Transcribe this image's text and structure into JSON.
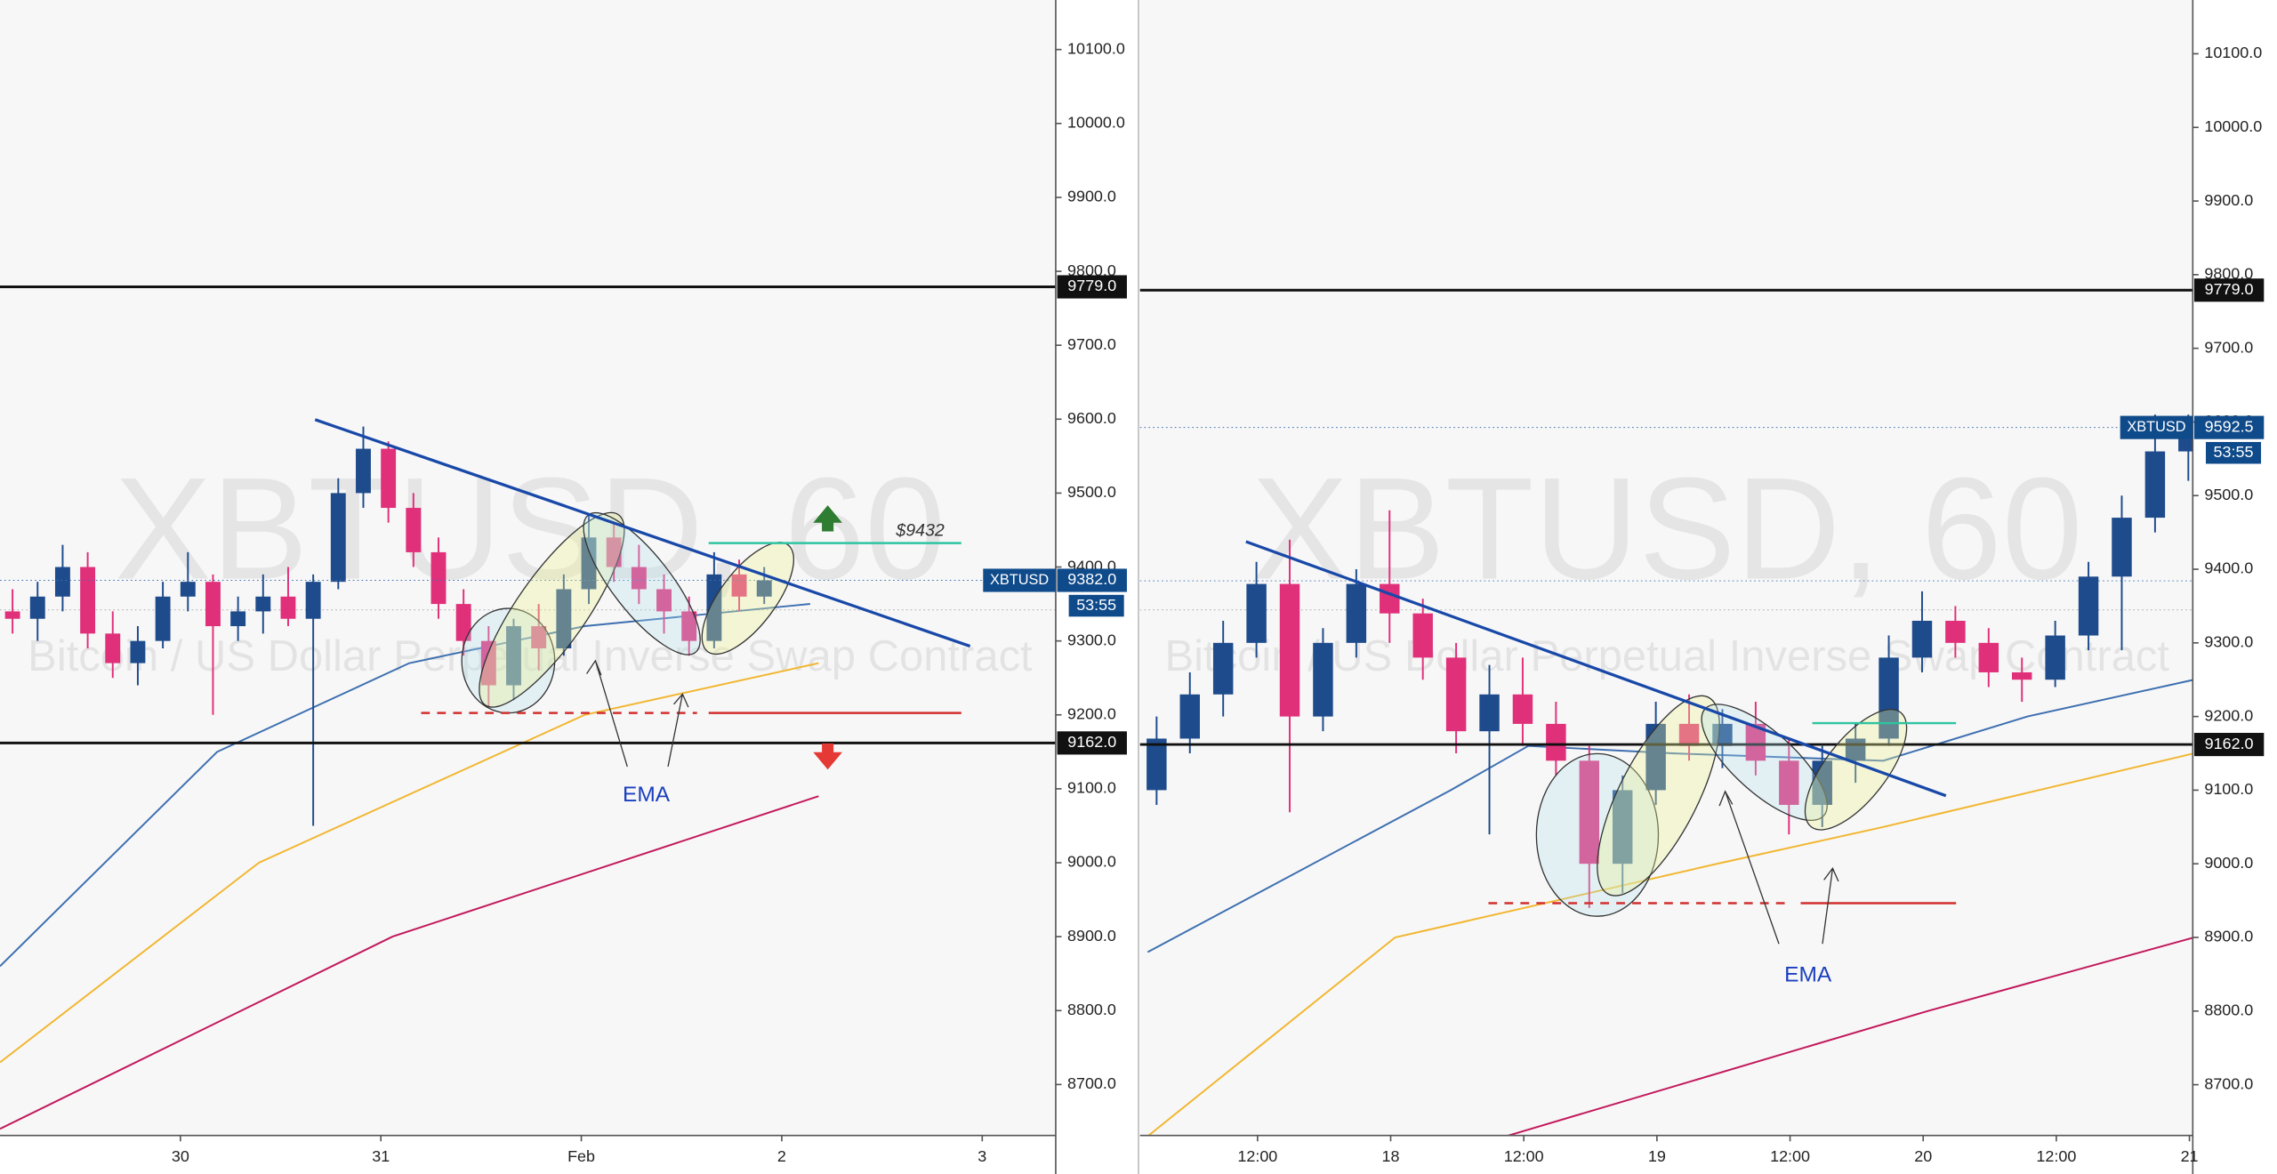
{
  "chart_data": [
    {
      "type": "candlestick",
      "watermark": "XBTUSD, 60",
      "subtitle": "Bitcoin / US Dollar Perpetual Inverse Swap Contract",
      "xlim": [
        0,
        126.4
      ],
      "ylim": [
        8631,
        10167
      ],
      "xticks": [
        {
          "value": 21.6,
          "label": "30"
        },
        {
          "value": 45.6,
          "label": "31"
        },
        {
          "value": 69.6,
          "label": "Feb"
        },
        {
          "value": 93.6,
          "label": "2"
        },
        {
          "value": 117.6,
          "label": "3"
        }
      ],
      "yticks": [
        {
          "value": 8700,
          "label": "8700.0"
        },
        {
          "value": 8800,
          "label": "8800.0"
        },
        {
          "value": 8900,
          "label": "8900.0"
        },
        {
          "value": 9000,
          "label": "9000.0"
        },
        {
          "value": 9100,
          "label": "9100.0"
        },
        {
          "value": 9200,
          "label": "9200.0"
        },
        {
          "value": 9300,
          "label": "9300.0"
        },
        {
          "value": 9400,
          "label": "9400.0"
        },
        {
          "value": 9500,
          "label": "9500.0"
        },
        {
          "value": 9600,
          "label": "9600.0"
        },
        {
          "value": 9700,
          "label": "9700.0"
        },
        {
          "value": 9800,
          "label": "9800.0"
        },
        {
          "value": 9900,
          "label": "9900.0"
        },
        {
          "value": 10000,
          "label": "10000.0"
        },
        {
          "value": 10100,
          "label": "10100.0"
        }
      ],
      "candle_hours": 3,
      "up_color": "#1e4b8c",
      "down_color": "#e0307a",
      "open": [
        9340,
        9330,
        9360,
        9400,
        9310,
        9270,
        9300,
        9360,
        9380,
        9320,
        9340,
        9360,
        9330,
        9380,
        9500,
        9560,
        9480,
        9420,
        9350,
        9300,
        9240,
        9320,
        9290,
        9370,
        9440,
        9400,
        9370,
        9340,
        9300,
        9390,
        9360
      ],
      "high": [
        9370,
        9380,
        9430,
        9420,
        9340,
        9320,
        9380,
        9420,
        9390,
        9360,
        9390,
        9400,
        9390,
        9520,
        9590,
        9570,
        9500,
        9440,
        9370,
        9320,
        9330,
        9350,
        9390,
        9470,
        9460,
        9430,
        9390,
        9360,
        9420,
        9410,
        9400
      ],
      "low": [
        9310,
        9300,
        9340,
        9290,
        9250,
        9240,
        9290,
        9340,
        9200,
        9300,
        9310,
        9320,
        9050,
        9370,
        9480,
        9460,
        9400,
        9330,
        9280,
        9210,
        9220,
        9260,
        9280,
        9350,
        9380,
        9350,
        9310,
        9280,
        9290,
        9340,
        9350
      ],
      "close": [
        9330,
        9360,
        9400,
        9310,
        9270,
        9300,
        9360,
        9380,
        9320,
        9340,
        9360,
        9330,
        9380,
        9500,
        9560,
        9480,
        9420,
        9350,
        9300,
        9240,
        9320,
        9290,
        9370,
        9440,
        9400,
        9370,
        9340,
        9300,
        9390,
        9360,
        9382
      ],
      "emas": [
        {
          "color": "#3d6fb0",
          "x": [
            0,
            26,
            49,
            70,
            97
          ],
          "values": [
            8860,
            9150,
            9270,
            9320,
            9350
          ]
        },
        {
          "color": "#f2b630",
          "x": [
            0,
            31,
            70,
            98
          ],
          "values": [
            8730,
            9000,
            9200,
            9270
          ]
        },
        {
          "color": "#c2185b",
          "x": [
            0,
            47,
            98
          ],
          "values": [
            8640,
            8900,
            9090
          ]
        }
      ],
      "levels": [
        {
          "value": 9779,
          "label": "9779.0"
        },
        {
          "value": 9162,
          "label": "9162.0"
        }
      ],
      "last_price": {
        "value": 9382,
        "label": "9382.0",
        "symbol": "XBTUSD",
        "countdown": "53:55"
      },
      "target_label": "$9432",
      "ema_label": "EMA"
    },
    {
      "type": "candlestick",
      "watermark": "XBTUSD, 60",
      "subtitle": "Bitcoin / US Dollar Perpetual Inverse Swap Contract",
      "xlim": [
        0,
        94.9
      ],
      "ylim": [
        8631,
        10173
      ],
      "xticks": [
        {
          "value": 10.6,
          "label": "12:00"
        },
        {
          "value": 22.6,
          "label": "18"
        },
        {
          "value": 34.6,
          "label": "12:00"
        },
        {
          "value": 46.6,
          "label": "19"
        },
        {
          "value": 58.6,
          "label": "12:00"
        },
        {
          "value": 70.6,
          "label": "20"
        },
        {
          "value": 82.6,
          "label": "12:00"
        },
        {
          "value": 94.6,
          "label": "21"
        }
      ],
      "yticks": [
        {
          "value": 8700,
          "label": "8700.0"
        },
        {
          "value": 8800,
          "label": "8800.0"
        },
        {
          "value": 8900,
          "label": "8900.0"
        },
        {
          "value": 9000,
          "label": "9000.0"
        },
        {
          "value": 9100,
          "label": "9100.0"
        },
        {
          "value": 9200,
          "label": "9200.0"
        },
        {
          "value": 9300,
          "label": "9300.0"
        },
        {
          "value": 9400,
          "label": "9400.0"
        },
        {
          "value": 9500,
          "label": "9500.0"
        },
        {
          "value": 9600,
          "label": "9600.0"
        },
        {
          "value": 9700,
          "label": "9700.0"
        },
        {
          "value": 9800,
          "label": "9800.0"
        },
        {
          "value": 9900,
          "label": "9900.0"
        },
        {
          "value": 10000,
          "label": "10000.0"
        },
        {
          "value": 10100,
          "label": "10100.0"
        }
      ],
      "candle_hours": 3,
      "up_color": "#1e4b8c",
      "down_color": "#e0307a",
      "open": [
        9100,
        9170,
        9230,
        9300,
        9380,
        9200,
        9300,
        9380,
        9340,
        9280,
        9180,
        9230,
        9190,
        9140,
        9000,
        9100,
        9190,
        9160,
        9190,
        9140,
        9080,
        9140,
        9170,
        9280,
        9330,
        9300,
        9260,
        9250,
        9310,
        9390,
        9470,
        9560
      ],
      "high": [
        9200,
        9260,
        9330,
        9410,
        9440,
        9320,
        9400,
        9480,
        9360,
        9300,
        9270,
        9280,
        9220,
        9160,
        9120,
        9220,
        9230,
        9210,
        9220,
        9170,
        9160,
        9190,
        9310,
        9370,
        9350,
        9320,
        9280,
        9330,
        9410,
        9500,
        9610,
        9610
      ],
      "low": [
        9080,
        9150,
        9200,
        9280,
        9070,
        9180,
        9280,
        9300,
        9250,
        9150,
        9040,
        9160,
        9120,
        8940,
        8960,
        9080,
        9140,
        9130,
        9120,
        9040,
        9050,
        9110,
        9160,
        9260,
        9280,
        9240,
        9220,
        9240,
        9290,
        9290,
        9450,
        9520
      ],
      "close": [
        9170,
        9230,
        9300,
        9380,
        9200,
        9300,
        9380,
        9340,
        9280,
        9180,
        9230,
        9190,
        9140,
        9000,
        9100,
        9190,
        9160,
        9190,
        9140,
        9080,
        9140,
        9170,
        9280,
        9330,
        9300,
        9260,
        9250,
        9310,
        9390,
        9470,
        9560,
        9592.5
      ],
      "emas": [
        {
          "color": "#3d6fb0",
          "x": [
            0.7,
            28,
            35,
            48,
            67,
            80,
            95
          ],
          "values": [
            8880,
            9100,
            9160,
            9150,
            9140,
            9200,
            9250
          ]
        },
        {
          "color": "#f2b630",
          "x": [
            0.7,
            23,
            52,
            67,
            95
          ],
          "values": [
            8630,
            8900,
            9000,
            9050,
            9150
          ]
        },
        {
          "color": "#c2185b",
          "x": [
            33,
            71,
            95
          ],
          "values": [
            8630,
            8800,
            8900
          ]
        }
      ],
      "levels": [
        {
          "value": 9779,
          "label": "9779.0"
        },
        {
          "value": 9162,
          "label": "9162.0"
        }
      ],
      "last_price": {
        "value": 9592.5,
        "label": "9592.5",
        "symbol": "XBTUSD",
        "countdown": "53:55"
      },
      "ema_label": "EMA"
    }
  ]
}
